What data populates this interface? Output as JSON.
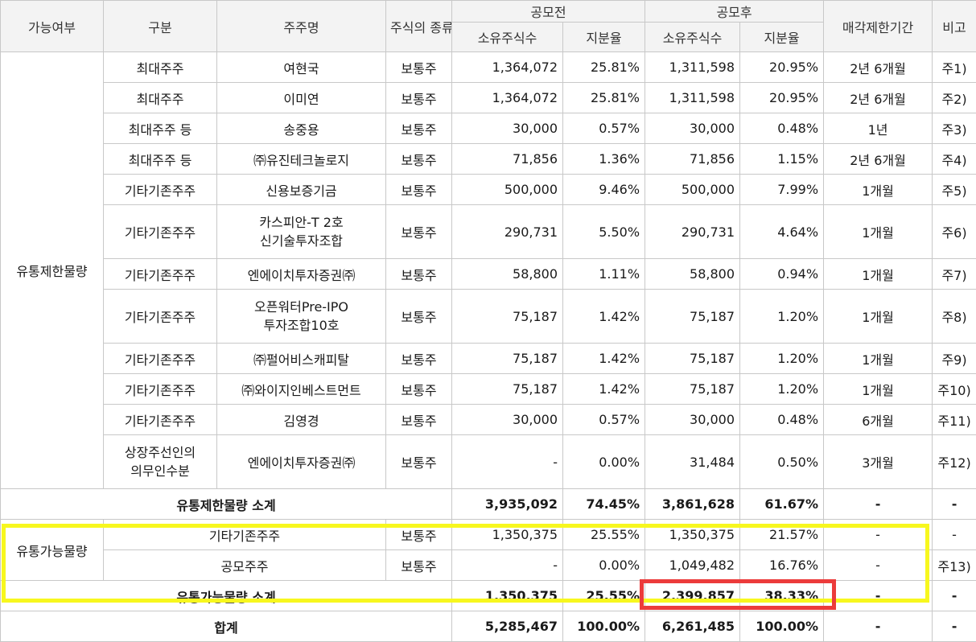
{
  "headers": {
    "availability": "가능여부",
    "category": "구분",
    "shareholder": "주주명",
    "stock_type": "주식의\n종류",
    "pre_ipo": "공모전",
    "post_ipo": "공모후",
    "shares_held": "소유주식수",
    "ratio": "지분율",
    "lockup": "매각제한기간",
    "note": "비고"
  },
  "restricted": {
    "group_label": "유통제한물량",
    "rows": [
      {
        "category": "최대주주",
        "name": "여현국",
        "type": "보통주",
        "pre_shares": "1,364,072",
        "pre_ratio": "25.81%",
        "post_shares": "1,311,598",
        "post_ratio": "20.95%",
        "lockup": "2년 6개월",
        "note": "주1)"
      },
      {
        "category": "최대주주",
        "name": "이미연",
        "type": "보통주",
        "pre_shares": "1,364,072",
        "pre_ratio": "25.81%",
        "post_shares": "1,311,598",
        "post_ratio": "20.95%",
        "lockup": "2년 6개월",
        "note": "주2)"
      },
      {
        "category": "최대주주 등",
        "name": "송중용",
        "type": "보통주",
        "pre_shares": "30,000",
        "pre_ratio": "0.57%",
        "post_shares": "30,000",
        "post_ratio": "0.48%",
        "lockup": "1년",
        "note": "주3)"
      },
      {
        "category": "최대주주 등",
        "name": "㈜유진테크놀로지",
        "type": "보통주",
        "pre_shares": "71,856",
        "pre_ratio": "1.36%",
        "post_shares": "71,856",
        "post_ratio": "1.15%",
        "lockup": "2년 6개월",
        "note": "주4)"
      },
      {
        "category": "기타기존주주",
        "name": "신용보증기금",
        "type": "보통주",
        "pre_shares": "500,000",
        "pre_ratio": "9.46%",
        "post_shares": "500,000",
        "post_ratio": "7.99%",
        "lockup": "1개월",
        "note": "주5)"
      },
      {
        "category": "기타기존주주",
        "name": "카스피안-T 2호\n신기술투자조합",
        "type": "보통주",
        "pre_shares": "290,731",
        "pre_ratio": "5.50%",
        "post_shares": "290,731",
        "post_ratio": "4.64%",
        "lockup": "1개월",
        "note": "주6)"
      },
      {
        "category": "기타기존주주",
        "name": "엔에이치투자증권㈜",
        "type": "보통주",
        "pre_shares": "58,800",
        "pre_ratio": "1.11%",
        "post_shares": "58,800",
        "post_ratio": "0.94%",
        "lockup": "1개월",
        "note": "주7)"
      },
      {
        "category": "기타기존주주",
        "name": "오픈워터Pre-IPO\n투자조합10호",
        "type": "보통주",
        "pre_shares": "75,187",
        "pre_ratio": "1.42%",
        "post_shares": "75,187",
        "post_ratio": "1.20%",
        "lockup": "1개월",
        "note": "주8)"
      },
      {
        "category": "기타기존주주",
        "name": "㈜펄어비스캐피탈",
        "type": "보통주",
        "pre_shares": "75,187",
        "pre_ratio": "1.42%",
        "post_shares": "75,187",
        "post_ratio": "1.20%",
        "lockup": "1개월",
        "note": "주9)"
      },
      {
        "category": "기타기존주주",
        "name": "㈜와이지인베스트먼트",
        "type": "보통주",
        "pre_shares": "75,187",
        "pre_ratio": "1.42%",
        "post_shares": "75,187",
        "post_ratio": "1.20%",
        "lockup": "1개월",
        "note": "주10)"
      },
      {
        "category": "기타기존주주",
        "name": "김영경",
        "type": "보통주",
        "pre_shares": "30,000",
        "pre_ratio": "0.57%",
        "post_shares": "30,000",
        "post_ratio": "0.48%",
        "lockup": "6개월",
        "note": "주11)"
      },
      {
        "category": "상장주선인의\n의무인수분",
        "name": "엔에이치투자증권㈜",
        "type": "보통주",
        "pre_shares": "-",
        "pre_ratio": "0.00%",
        "post_shares": "31,484",
        "post_ratio": "0.50%",
        "lockup": "3개월",
        "note": "주12)"
      }
    ],
    "subtotal": {
      "label": "유통제한물량 소계",
      "pre_shares": "3,935,092",
      "pre_ratio": "74.45%",
      "post_shares": "3,861,628",
      "post_ratio": "61.67%",
      "lockup": "-",
      "note": "-"
    }
  },
  "tradable": {
    "group_label": "유통가능물량",
    "rows": [
      {
        "category": "기타기존주주",
        "type": "보통주",
        "pre_shares": "1,350,375",
        "pre_ratio": "25.55%",
        "post_shares": "1,350,375",
        "post_ratio": "21.57%",
        "lockup": "-",
        "note": "-"
      },
      {
        "category": "공모주주",
        "type": "보통주",
        "pre_shares": "-",
        "pre_ratio": "0.00%",
        "post_shares": "1,049,482",
        "post_ratio": "16.76%",
        "lockup": "-",
        "note": "주13)"
      }
    ],
    "subtotal": {
      "label": "유통가능물량 소계",
      "pre_shares": "1,350,375",
      "pre_ratio": "25.55%",
      "post_shares": "2,399,857",
      "post_ratio": "38.33%",
      "lockup": "-",
      "note": "-"
    }
  },
  "total": {
    "label": "합계",
    "pre_shares": "5,285,467",
    "pre_ratio": "100.00%",
    "post_shares": "6,261,485",
    "post_ratio": "100.00%",
    "lockup": "-",
    "note": "-"
  },
  "highlight_colors": {
    "yellow_box": "#f7f71e",
    "red_box": "#ec3b3b"
  }
}
